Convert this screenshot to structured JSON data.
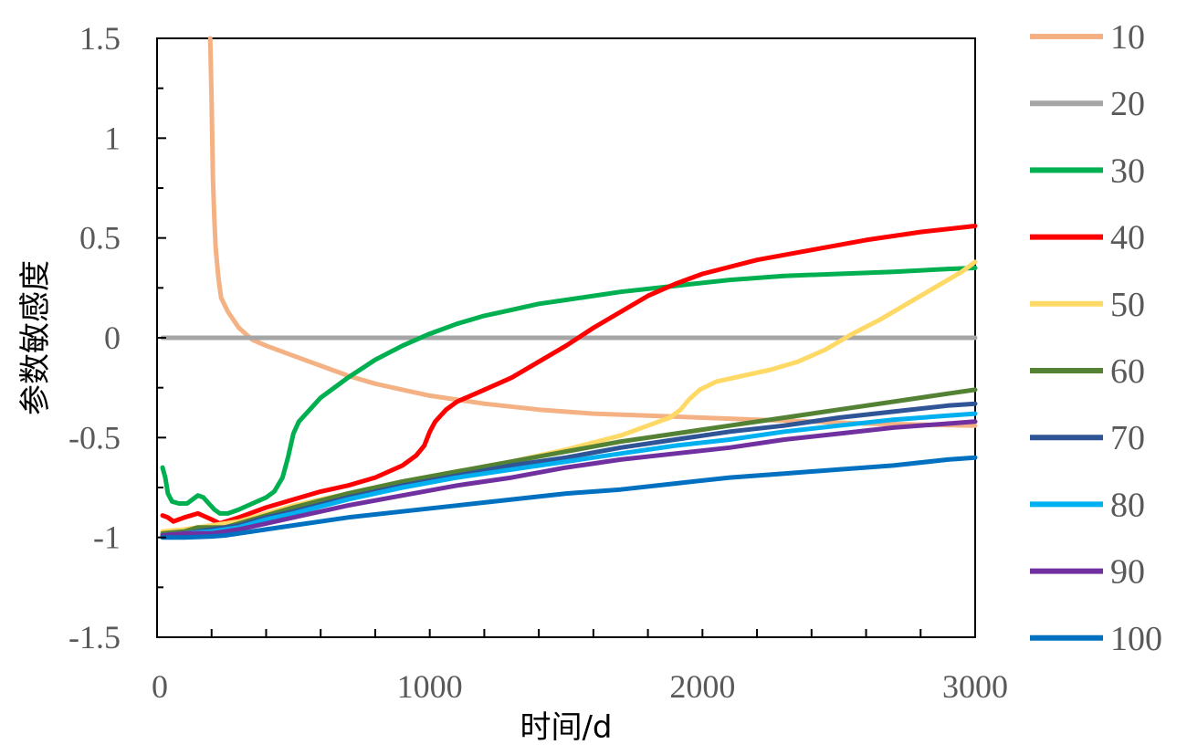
{
  "chart_data": {
    "type": "line",
    "title": "",
    "xlabel": "时间/d",
    "ylabel": "参数敏感度",
    "xlim": [
      0,
      3000
    ],
    "ylim": [
      -1.5,
      1.5
    ],
    "x_ticks": [
      "0",
      "1000",
      "2000",
      "3000"
    ],
    "y_ticks": [
      "1.5",
      "1",
      "0.5",
      "0",
      "-0.5",
      "-1",
      "-1.5"
    ],
    "grid": false,
    "legend_position": "right",
    "series": [
      {
        "name": "10",
        "color": "#F4B183",
        "points": [
          [
            195,
            1.5
          ],
          [
            200,
            1.2
          ],
          [
            205,
            0.8
          ],
          [
            210,
            0.6
          ],
          [
            215,
            0.45
          ],
          [
            225,
            0.3
          ],
          [
            235,
            0.2
          ],
          [
            260,
            0.13
          ],
          [
            300,
            0.05
          ],
          [
            350,
            -0.01
          ],
          [
            400,
            -0.04
          ],
          [
            500,
            -0.09
          ],
          [
            600,
            -0.14
          ],
          [
            700,
            -0.19
          ],
          [
            800,
            -0.23
          ],
          [
            900,
            -0.26
          ],
          [
            1000,
            -0.29
          ],
          [
            1200,
            -0.33
          ],
          [
            1400,
            -0.36
          ],
          [
            1600,
            -0.38
          ],
          [
            1800,
            -0.39
          ],
          [
            2000,
            -0.4
          ],
          [
            2200,
            -0.41
          ],
          [
            2400,
            -0.42
          ],
          [
            2600,
            -0.43
          ],
          [
            2800,
            -0.435
          ],
          [
            3000,
            -0.44
          ]
        ]
      },
      {
        "name": "20",
        "color": "#A5A5A5",
        "points": [
          [
            20,
            0
          ],
          [
            3000,
            0
          ]
        ]
      },
      {
        "name": "30",
        "color": "#00B050",
        "points": [
          [
            20,
            -0.65
          ],
          [
            30,
            -0.7
          ],
          [
            40,
            -0.78
          ],
          [
            55,
            -0.82
          ],
          [
            80,
            -0.83
          ],
          [
            110,
            -0.83
          ],
          [
            130,
            -0.81
          ],
          [
            150,
            -0.79
          ],
          [
            170,
            -0.8
          ],
          [
            190,
            -0.83
          ],
          [
            210,
            -0.86
          ],
          [
            230,
            -0.88
          ],
          [
            260,
            -0.88
          ],
          [
            300,
            -0.86
          ],
          [
            350,
            -0.83
          ],
          [
            400,
            -0.8
          ],
          [
            430,
            -0.77
          ],
          [
            460,
            -0.7
          ],
          [
            480,
            -0.6
          ],
          [
            500,
            -0.48
          ],
          [
            520,
            -0.42
          ],
          [
            560,
            -0.36
          ],
          [
            600,
            -0.3
          ],
          [
            650,
            -0.25
          ],
          [
            700,
            -0.2
          ],
          [
            800,
            -0.11
          ],
          [
            900,
            -0.04
          ],
          [
            1000,
            0.02
          ],
          [
            1100,
            0.07
          ],
          [
            1200,
            0.11
          ],
          [
            1300,
            0.14
          ],
          [
            1400,
            0.17
          ],
          [
            1500,
            0.19
          ],
          [
            1700,
            0.23
          ],
          [
            1900,
            0.26
          ],
          [
            2100,
            0.29
          ],
          [
            2300,
            0.31
          ],
          [
            2500,
            0.32
          ],
          [
            2700,
            0.33
          ],
          [
            2900,
            0.345
          ],
          [
            3000,
            0.35
          ]
        ]
      },
      {
        "name": "40",
        "color": "#FF0000",
        "points": [
          [
            20,
            -0.89
          ],
          [
            40,
            -0.9
          ],
          [
            60,
            -0.92
          ],
          [
            80,
            -0.91
          ],
          [
            100,
            -0.9
          ],
          [
            150,
            -0.88
          ],
          [
            200,
            -0.91
          ],
          [
            230,
            -0.93
          ],
          [
            300,
            -0.9
          ],
          [
            400,
            -0.85
          ],
          [
            500,
            -0.81
          ],
          [
            600,
            -0.77
          ],
          [
            700,
            -0.74
          ],
          [
            800,
            -0.7
          ],
          [
            900,
            -0.64
          ],
          [
            950,
            -0.59
          ],
          [
            980,
            -0.54
          ],
          [
            1000,
            -0.47
          ],
          [
            1020,
            -0.42
          ],
          [
            1060,
            -0.36
          ],
          [
            1100,
            -0.32
          ],
          [
            1200,
            -0.26
          ],
          [
            1300,
            -0.2
          ],
          [
            1400,
            -0.12
          ],
          [
            1500,
            -0.04
          ],
          [
            1600,
            0.05
          ],
          [
            1700,
            0.13
          ],
          [
            1800,
            0.21
          ],
          [
            1900,
            0.27
          ],
          [
            2000,
            0.32
          ],
          [
            2200,
            0.39
          ],
          [
            2400,
            0.44
          ],
          [
            2600,
            0.49
          ],
          [
            2800,
            0.53
          ],
          [
            3000,
            0.56
          ]
        ]
      },
      {
        "name": "50",
        "color": "#FFD966",
        "points": [
          [
            20,
            -0.97
          ],
          [
            100,
            -0.96
          ],
          [
            200,
            -0.94
          ],
          [
            300,
            -0.92
          ],
          [
            400,
            -0.88
          ],
          [
            500,
            -0.84
          ],
          [
            700,
            -0.78
          ],
          [
            900,
            -0.72
          ],
          [
            1100,
            -0.67
          ],
          [
            1300,
            -0.62
          ],
          [
            1500,
            -0.56
          ],
          [
            1700,
            -0.49
          ],
          [
            1800,
            -0.44
          ],
          [
            1880,
            -0.4
          ],
          [
            1920,
            -0.36
          ],
          [
            1950,
            -0.31
          ],
          [
            1990,
            -0.26
          ],
          [
            2050,
            -0.22
          ],
          [
            2150,
            -0.19
          ],
          [
            2250,
            -0.16
          ],
          [
            2350,
            -0.12
          ],
          [
            2450,
            -0.06
          ],
          [
            2550,
            0.02
          ],
          [
            2650,
            0.09
          ],
          [
            2750,
            0.17
          ],
          [
            2850,
            0.25
          ],
          [
            2950,
            0.33
          ],
          [
            3000,
            0.38
          ]
        ]
      },
      {
        "name": "60",
        "color": "#548235",
        "points": [
          [
            20,
            -0.98
          ],
          [
            100,
            -0.97
          ],
          [
            150,
            -0.95
          ],
          [
            200,
            -0.95
          ],
          [
            250,
            -0.95
          ],
          [
            300,
            -0.93
          ],
          [
            400,
            -0.89
          ],
          [
            500,
            -0.85
          ],
          [
            700,
            -0.78
          ],
          [
            900,
            -0.72
          ],
          [
            1100,
            -0.67
          ],
          [
            1300,
            -0.62
          ],
          [
            1500,
            -0.57
          ],
          [
            1700,
            -0.52
          ],
          [
            1900,
            -0.48
          ],
          [
            2100,
            -0.44
          ],
          [
            2300,
            -0.4
          ],
          [
            2500,
            -0.36
          ],
          [
            2700,
            -0.32
          ],
          [
            2900,
            -0.28
          ],
          [
            3000,
            -0.26
          ]
        ]
      },
      {
        "name": "70",
        "color": "#2F5597",
        "points": [
          [
            20,
            -0.99
          ],
          [
            100,
            -0.98
          ],
          [
            200,
            -0.96
          ],
          [
            300,
            -0.94
          ],
          [
            400,
            -0.9
          ],
          [
            500,
            -0.87
          ],
          [
            700,
            -0.8
          ],
          [
            900,
            -0.74
          ],
          [
            1100,
            -0.69
          ],
          [
            1300,
            -0.64
          ],
          [
            1500,
            -0.6
          ],
          [
            1700,
            -0.55
          ],
          [
            1900,
            -0.51
          ],
          [
            2100,
            -0.47
          ],
          [
            2300,
            -0.44
          ],
          [
            2500,
            -0.4
          ],
          [
            2700,
            -0.37
          ],
          [
            2900,
            -0.34
          ],
          [
            3000,
            -0.33
          ]
        ]
      },
      {
        "name": "80",
        "color": "#00B0F0",
        "points": [
          [
            20,
            -0.99
          ],
          [
            100,
            -0.98
          ],
          [
            200,
            -0.97
          ],
          [
            300,
            -0.95
          ],
          [
            400,
            -0.91
          ],
          [
            500,
            -0.88
          ],
          [
            700,
            -0.81
          ],
          [
            900,
            -0.75
          ],
          [
            1100,
            -0.7
          ],
          [
            1300,
            -0.66
          ],
          [
            1500,
            -0.62
          ],
          [
            1700,
            -0.58
          ],
          [
            1900,
            -0.54
          ],
          [
            2100,
            -0.51
          ],
          [
            2300,
            -0.47
          ],
          [
            2500,
            -0.44
          ],
          [
            2700,
            -0.41
          ],
          [
            2900,
            -0.39
          ],
          [
            3000,
            -0.38
          ]
        ]
      },
      {
        "name": "90",
        "color": "#7030A0",
        "points": [
          [
            20,
            -0.99
          ],
          [
            100,
            -0.98
          ],
          [
            200,
            -0.98
          ],
          [
            300,
            -0.96
          ],
          [
            400,
            -0.93
          ],
          [
            500,
            -0.9
          ],
          [
            700,
            -0.84
          ],
          [
            900,
            -0.79
          ],
          [
            1100,
            -0.74
          ],
          [
            1300,
            -0.7
          ],
          [
            1500,
            -0.65
          ],
          [
            1700,
            -0.61
          ],
          [
            1900,
            -0.58
          ],
          [
            2100,
            -0.55
          ],
          [
            2300,
            -0.51
          ],
          [
            2500,
            -0.48
          ],
          [
            2700,
            -0.45
          ],
          [
            2900,
            -0.43
          ],
          [
            3000,
            -0.42
          ]
        ]
      },
      {
        "name": "100",
        "color": "#0070C0",
        "points": [
          [
            20,
            -1.0
          ],
          [
            100,
            -1.0
          ],
          [
            200,
            -0.995
          ],
          [
            250,
            -0.99
          ],
          [
            300,
            -0.98
          ],
          [
            400,
            -0.96
          ],
          [
            500,
            -0.94
          ],
          [
            700,
            -0.9
          ],
          [
            900,
            -0.87
          ],
          [
            1100,
            -0.84
          ],
          [
            1300,
            -0.81
          ],
          [
            1500,
            -0.78
          ],
          [
            1700,
            -0.76
          ],
          [
            1900,
            -0.73
          ],
          [
            2100,
            -0.7
          ],
          [
            2300,
            -0.68
          ],
          [
            2500,
            -0.66
          ],
          [
            2700,
            -0.64
          ],
          [
            2900,
            -0.61
          ],
          [
            3000,
            -0.6
          ]
        ]
      }
    ]
  }
}
